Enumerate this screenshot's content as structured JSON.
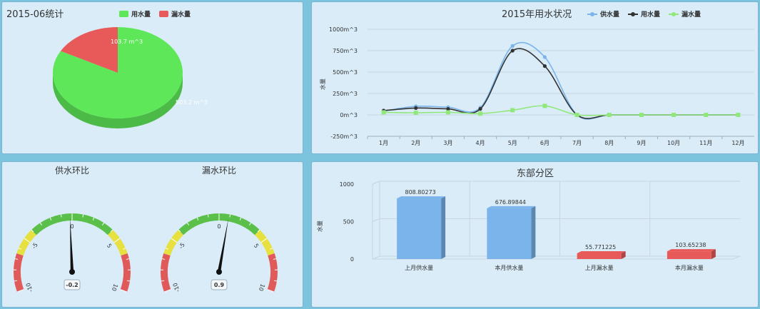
{
  "pie_panel": {
    "title": "2015-06统计",
    "legend": [
      {
        "label": "用水量",
        "color": "#5ee859"
      },
      {
        "label": "漏水量",
        "color": "#e85a5a"
      }
    ],
    "slice_labels": [
      "503.2 m^3",
      "103.7 m^3"
    ]
  },
  "line_panel": {
    "title": "2015年用水状况",
    "ylabel": "水量",
    "legend": [
      {
        "label": "供水量",
        "color": "#7ab4ea"
      },
      {
        "label": "用水量",
        "color": "#333333"
      },
      {
        "label": "漏水量",
        "color": "#90e87a"
      }
    ],
    "y_ticks": [
      "1000m^3",
      "750m^3",
      "500m^3",
      "250m^3",
      "0m^3",
      "-250m^3"
    ]
  },
  "gauge_panel": {
    "gauges": [
      {
        "title": "供水环比",
        "value_label": "-0.2"
      },
      {
        "title": "漏水环比",
        "value_label": "0.9"
      }
    ],
    "tick_labels": [
      "-10",
      "-5",
      "0",
      "5",
      "10"
    ]
  },
  "bar_panel": {
    "title": "东部分区",
    "ylabel": "水量",
    "y_ticks": [
      "1000",
      "500",
      "0"
    ],
    "bar_labels": [
      "808.80273",
      "676.89844",
      "55.771225",
      "103.65238"
    ]
  },
  "chart_data": [
    {
      "type": "pie",
      "title": "2015-06统计",
      "slices": [
        {
          "name": "用水量",
          "value": 503.2,
          "unit": "m^3",
          "color": "#5ee859"
        },
        {
          "name": "漏水量",
          "value": 103.7,
          "unit": "m^3",
          "color": "#e85a5a"
        }
      ]
    },
    {
      "type": "line",
      "title": "2015年用水状况",
      "ylabel": "水量",
      "ylim": [
        -250,
        1000
      ],
      "categories": [
        "1月",
        "2月",
        "3月",
        "4月",
        "5月",
        "6月",
        "7月",
        "8月",
        "9月",
        "10月",
        "11月",
        "12月"
      ],
      "series": [
        {
          "name": "供水量",
          "color": "#7ab4ea",
          "values": [
            45,
            100,
            90,
            85,
            805,
            675,
            0,
            0,
            0,
            0,
            0,
            0
          ]
        },
        {
          "name": "用水量",
          "color": "#333333",
          "values": [
            50,
            80,
            70,
            70,
            750,
            570,
            0,
            0,
            0,
            0,
            0,
            0
          ]
        },
        {
          "name": "漏水量",
          "color": "#90e87a",
          "values": [
            30,
            25,
            30,
            15,
            55,
            105,
            0,
            0,
            0,
            0,
            0,
            0
          ]
        }
      ]
    },
    {
      "type": "gauge",
      "title": "供水环比",
      "value": -0.2,
      "range": [
        -10,
        10
      ]
    },
    {
      "type": "gauge",
      "title": "漏水环比",
      "value": 0.9,
      "range": [
        -10,
        10
      ]
    },
    {
      "type": "bar",
      "title": "东部分区",
      "ylabel": "水量",
      "ylim": [
        0,
        1000
      ],
      "categories": [
        "上月供水量",
        "本月供水量",
        "上月漏水量",
        "本月漏水量"
      ],
      "values": [
        808.80273,
        676.89844,
        55.771225,
        103.65238
      ],
      "colors": [
        "#7ab4ea",
        "#7ab4ea",
        "#e85a5a",
        "#e85a5a"
      ]
    }
  ]
}
